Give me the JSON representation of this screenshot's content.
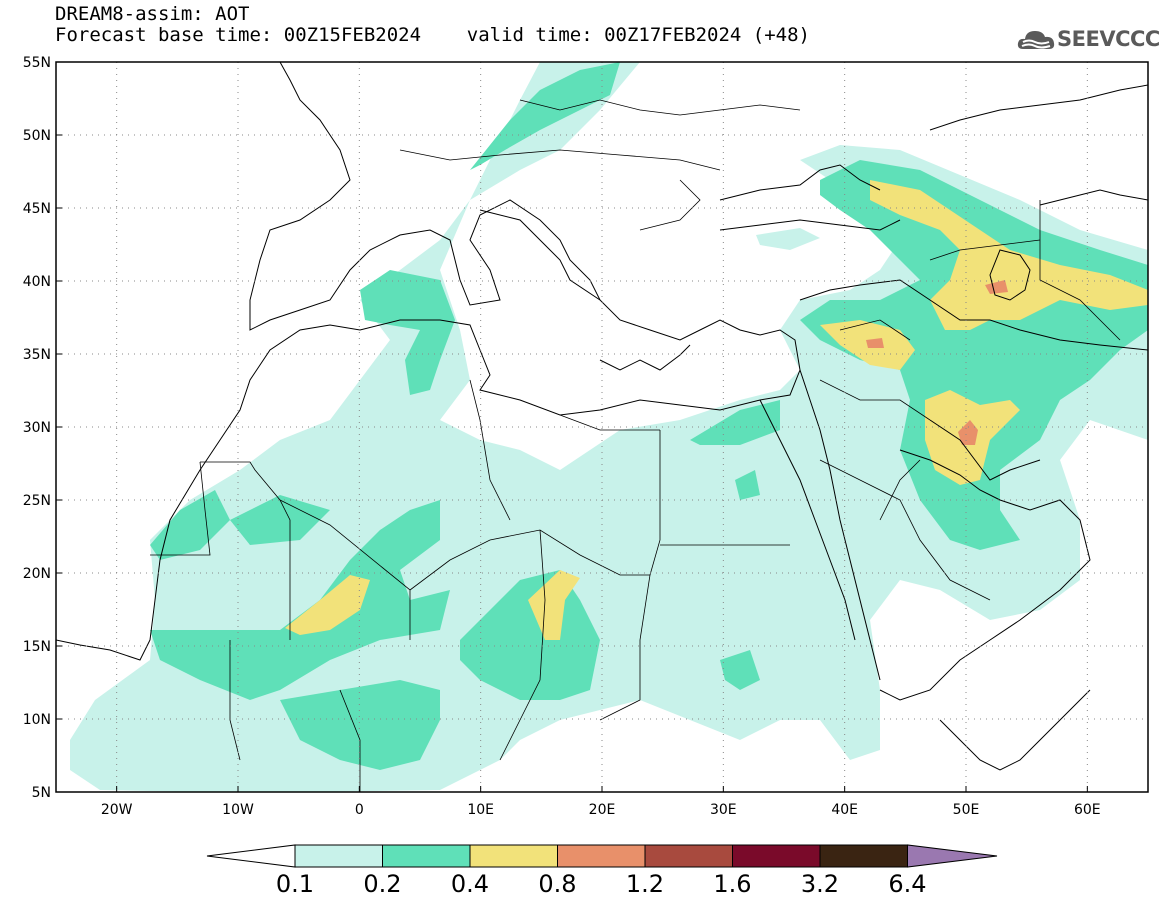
{
  "header": {
    "title_line1": "DREAM8-assim: AOT",
    "title_line2": "Forecast base time: 00Z15FEB2024    valid time: 00Z17FEB2024 (+48)"
  },
  "logo": {
    "text": "SEEVCCC",
    "icon": "cloud-icon"
  },
  "map": {
    "lon_range": [
      -25,
      65
    ],
    "lat_range": [
      5,
      55
    ],
    "x_ticks": [
      "20W",
      "10W",
      "0",
      "10E",
      "20E",
      "30E",
      "40E",
      "50E",
      "60E"
    ],
    "y_ticks": [
      "55N",
      "50N",
      "45N",
      "40N",
      "35N",
      "30N",
      "25N",
      "20N",
      "15N",
      "10N",
      "5N"
    ],
    "grid": true
  },
  "colorbar": {
    "labels": [
      "0.1",
      "0.2",
      "0.4",
      "0.8",
      "1.2",
      "1.6",
      "3.2",
      "6.4"
    ],
    "colors": [
      "#c8f2ea",
      "#5fe0b8",
      "#f2e27a",
      "#e8906a",
      "#a84a3e",
      "#7a0a2a",
      "#3a2412",
      "#9a78b0"
    ],
    "low_color": "#ffffff"
  }
}
